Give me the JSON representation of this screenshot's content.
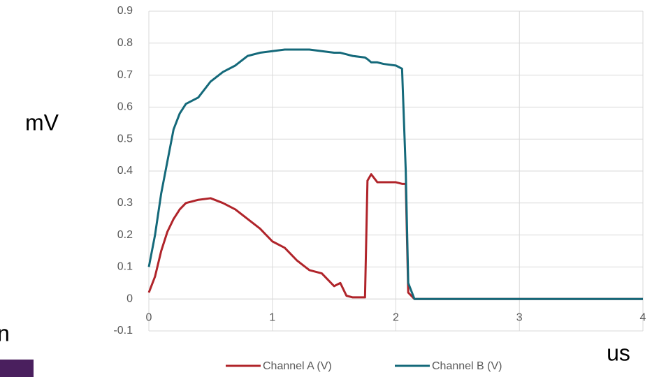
{
  "chart_data": {
    "type": "line",
    "y_label": "mV",
    "x_label": "us",
    "annotation": "n",
    "x": [
      0,
      0.05,
      0.1,
      0.15,
      0.2,
      0.25,
      0.3,
      0.4,
      0.5,
      0.6,
      0.7,
      0.8,
      0.9,
      1.0,
      1.1,
      1.2,
      1.3,
      1.4,
      1.5,
      1.55,
      1.6,
      1.65,
      1.75,
      1.77,
      1.8,
      1.85,
      1.9,
      2.0,
      2.05,
      2.08,
      2.1,
      2.15,
      2.2,
      3.0,
      4.0
    ],
    "series": [
      {
        "name": "Channel A (V)",
        "color": "#b0242a",
        "values": [
          0.02,
          0.07,
          0.15,
          0.21,
          0.25,
          0.28,
          0.3,
          0.31,
          0.315,
          0.3,
          0.28,
          0.25,
          0.22,
          0.18,
          0.16,
          0.12,
          0.09,
          0.08,
          0.04,
          0.05,
          0.01,
          0.005,
          0.005,
          0.37,
          0.39,
          0.365,
          0.365,
          0.365,
          0.36,
          0.36,
          0.02,
          0,
          0,
          0,
          0
        ]
      },
      {
        "name": "Channel B (V)",
        "color": "#14697a",
        "values": [
          0.1,
          0.2,
          0.33,
          0.43,
          0.53,
          0.58,
          0.61,
          0.63,
          0.68,
          0.71,
          0.73,
          0.76,
          0.77,
          0.775,
          0.78,
          0.78,
          0.78,
          0.775,
          0.77,
          0.77,
          0.765,
          0.76,
          0.755,
          0.75,
          0.74,
          0.74,
          0.735,
          0.73,
          0.72,
          0.4,
          0.05,
          0,
          0,
          0,
          0
        ]
      }
    ],
    "xlim": [
      0,
      4
    ],
    "xticks": [
      0,
      1,
      2,
      3,
      4
    ],
    "ylim": [
      -0.1,
      0.9
    ],
    "yticks": [
      -0.1,
      0,
      0.1,
      0.2,
      0.3,
      0.4,
      0.5,
      0.6,
      0.7,
      0.8,
      0.9
    ],
    "grid": true
  }
}
